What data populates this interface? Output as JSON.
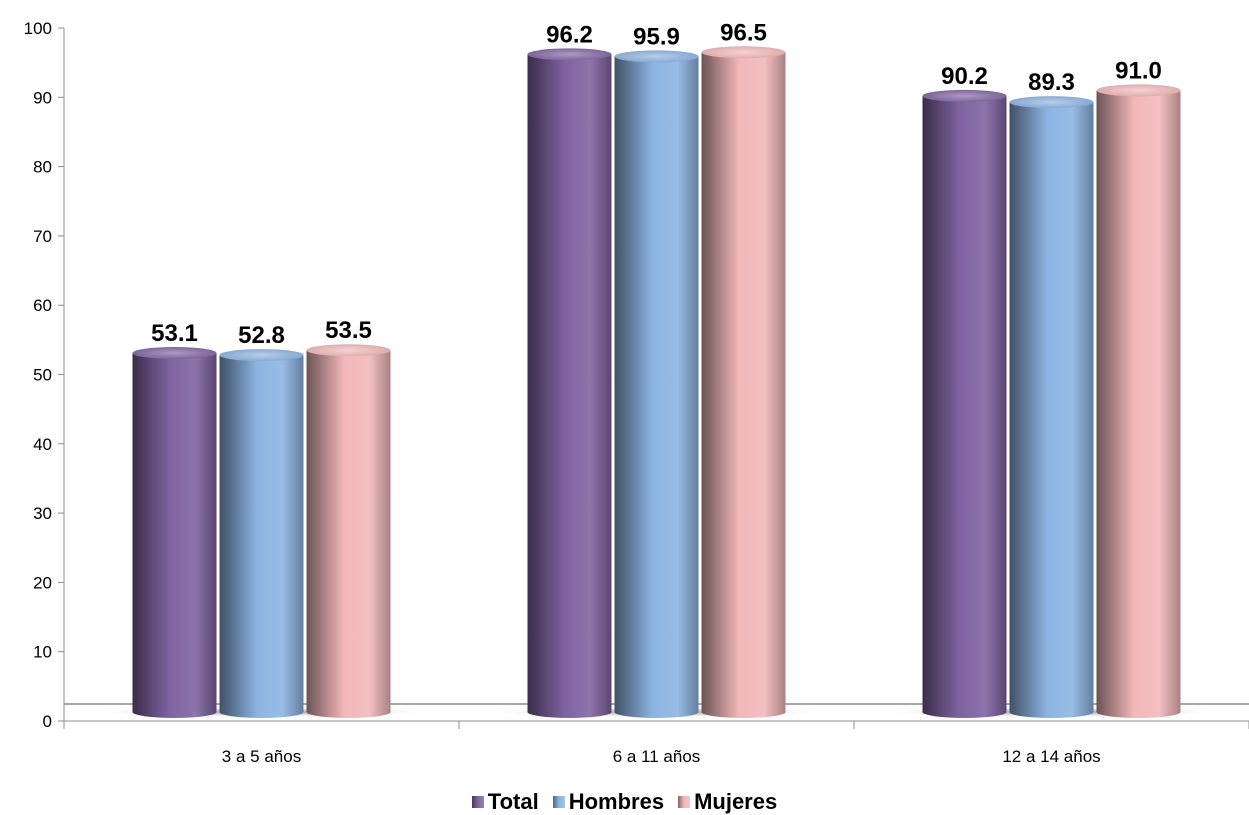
{
  "chart_data": {
    "type": "bar",
    "categories": [
      "3 a 5 años",
      "6 a 11 años",
      "12 a 14 años"
    ],
    "series": [
      {
        "name": "Total",
        "values": [
          53.1,
          96.2,
          90.2
        ],
        "labels": [
          "53.1",
          "96.2",
          "90.2"
        ],
        "color": "#8064A2"
      },
      {
        "name": "Hombres",
        "values": [
          52.8,
          95.9,
          89.3
        ],
        "labels": [
          "52.8",
          "95.9",
          "89.3"
        ],
        "color": "#8DB4E2"
      },
      {
        "name": "Mujeres",
        "values": [
          53.5,
          96.5,
          91.0
        ],
        "labels": [
          "53.5",
          "96.5",
          "91.0"
        ],
        "color": "#F2B8BA"
      }
    ],
    "yticks": [
      "0",
      "10",
      "20",
      "30",
      "40",
      "50",
      "60",
      "70",
      "80",
      "90",
      "100"
    ],
    "ylim": [
      0,
      100
    ],
    "title": "",
    "xlabel": "",
    "ylabel": "",
    "grid": false,
    "legend": "bottom"
  }
}
